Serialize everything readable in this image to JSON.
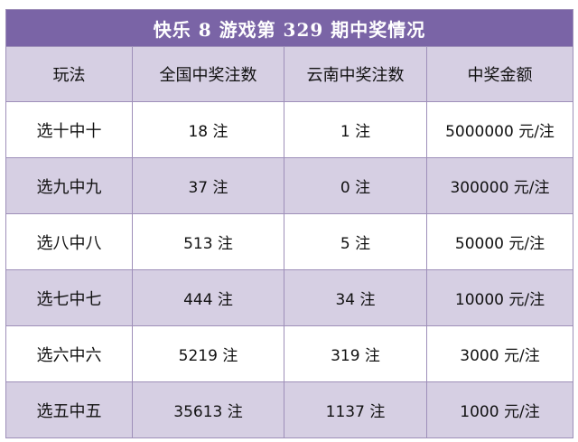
{
  "table": {
    "title": "快乐 8 游戏第 329 期中奖情况",
    "headers": [
      "玩法",
      "全国中奖注数",
      "云南中奖注数",
      "中奖金额"
    ],
    "rows": [
      [
        "选十中十",
        "18 注",
        "1 注",
        "5000000 元/注"
      ],
      [
        "选九中九",
        "37 注",
        "0 注",
        "300000 元/注"
      ],
      [
        "选八中八",
        "513 注",
        "5 注",
        "50000 元/注"
      ],
      [
        "选七中七",
        "444 注",
        "34 注",
        "10000 元/注"
      ],
      [
        "选六中六",
        "5219 注",
        "319 注",
        "3000 元/注"
      ],
      [
        "选五中五",
        "35613 注",
        "1137 注",
        "1000 元/注"
      ]
    ]
  },
  "colors": {
    "title_bg": "#7a64a6",
    "band_bg": "#d6cfe3",
    "border": "#9e8fb9"
  }
}
